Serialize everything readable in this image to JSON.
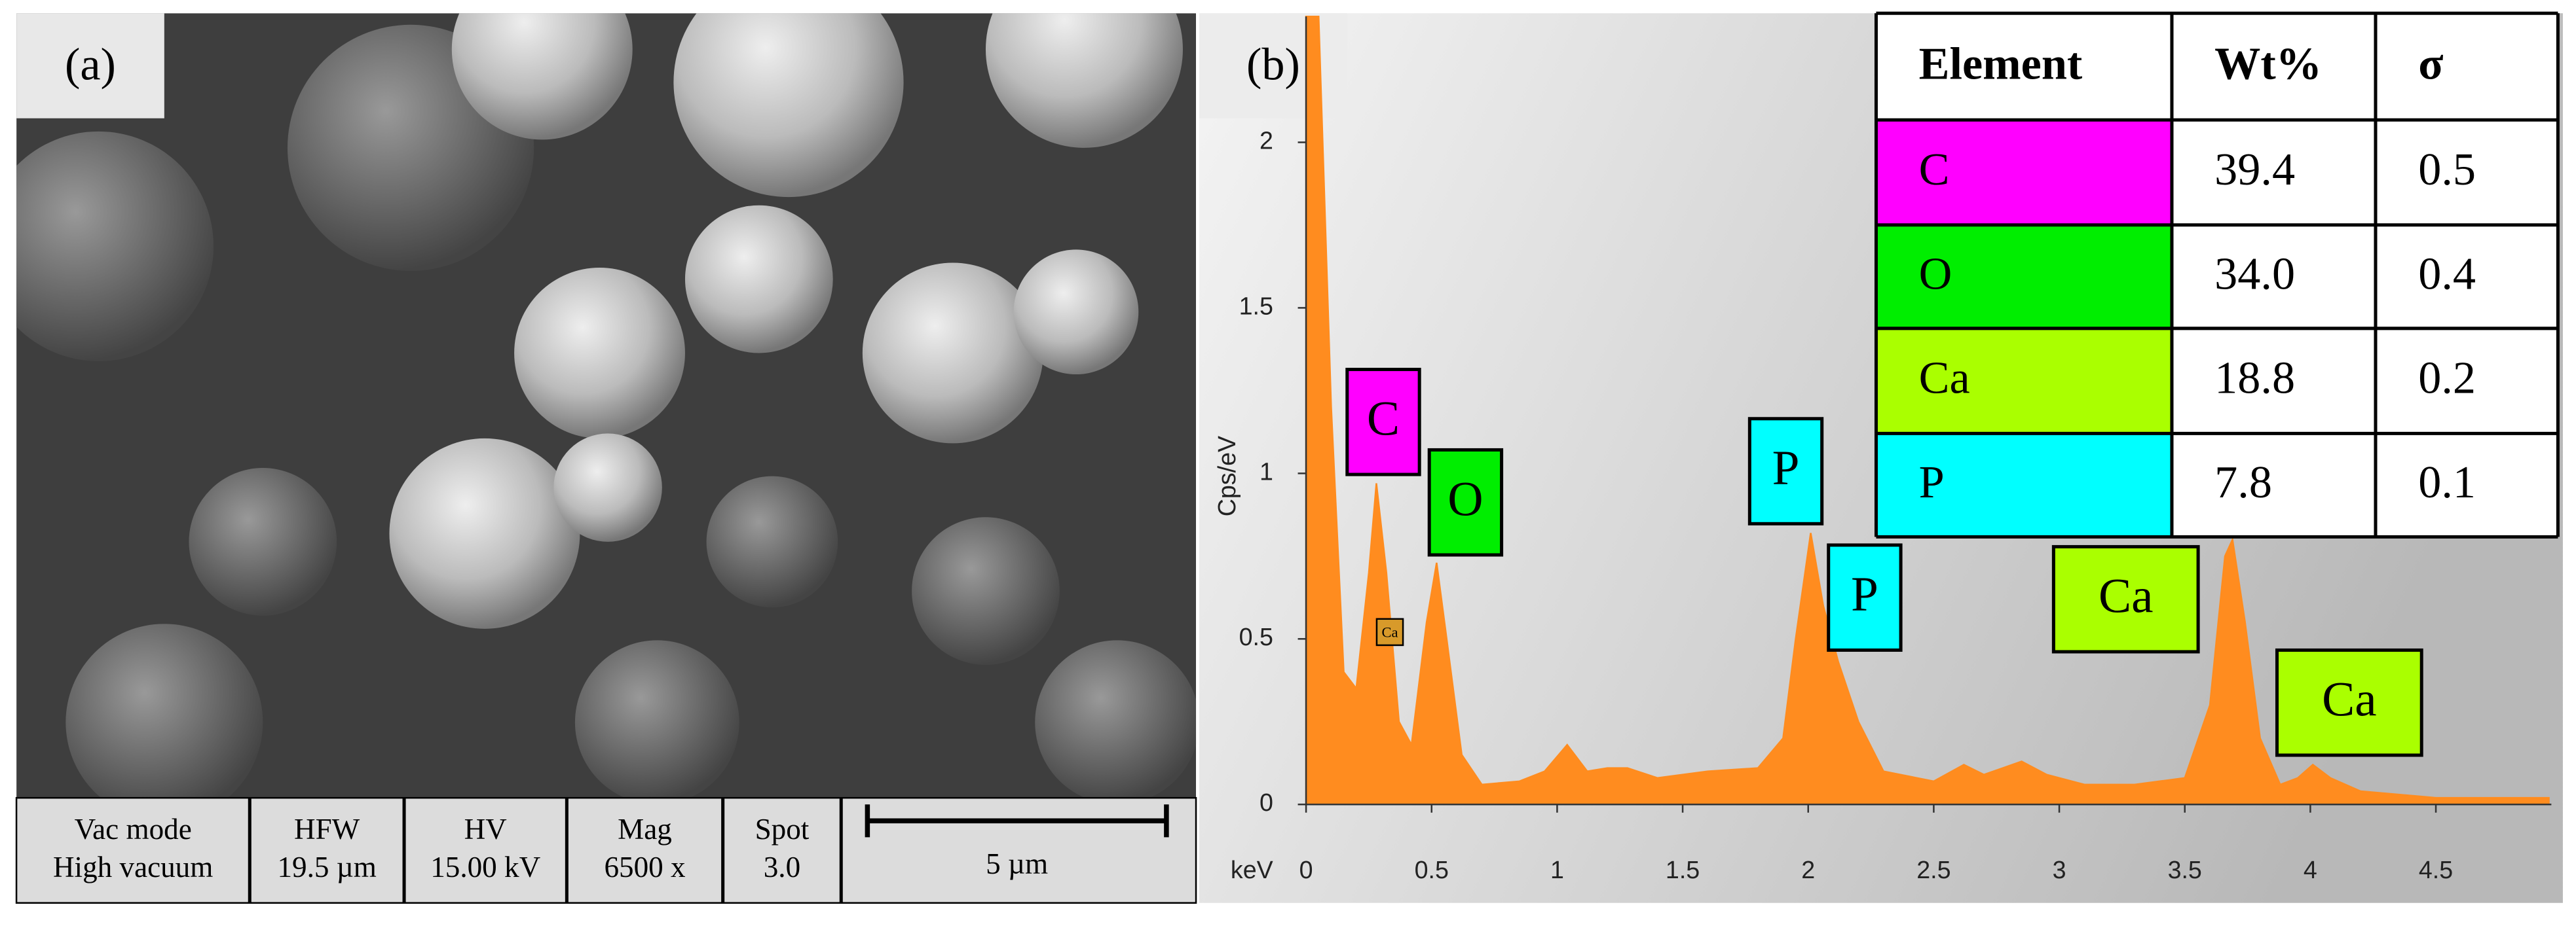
{
  "panel_a": {
    "label": "(a)",
    "info_bar": [
      [
        "Vac mode",
        "High vacuum"
      ],
      [
        "HFW",
        "19.5 µm"
      ],
      [
        "HV",
        "15.00 kV"
      ],
      [
        "Mag",
        "6500 x"
      ],
      [
        "Spot",
        "3.0"
      ]
    ],
    "scale_bar": "5 µm"
  },
  "table": {
    "header": [
      "Element",
      "Wt%",
      "σ"
    ],
    "rows": [
      [
        "C",
        "39.4",
        "0.5"
      ],
      [
        "O",
        "34.0",
        "0.4"
      ],
      [
        "Ca",
        "18.8",
        "0.2"
      ],
      [
        "P",
        "7.8",
        "0.1"
      ]
    ],
    "row_colors": [
      "#ff00ff",
      "#00ee00",
      "#aaff00",
      "#00ffff"
    ]
  },
  "chart_data": {
    "type": "area",
    "panel_label": "(b)",
    "x_label": "keV",
    "y_label": "Cps/eV",
    "color": "#ff8c1f",
    "x": [
      0.0,
      0.05,
      0.1,
      0.15,
      0.2,
      0.25,
      0.28,
      0.32,
      0.37,
      0.42,
      0.48,
      0.52,
      0.56,
      0.62,
      0.7,
      0.85,
      0.95,
      1.04,
      1.12,
      1.2,
      1.28,
      1.4,
      1.6,
      1.8,
      1.9,
      1.95,
      2.01,
      2.06,
      2.12,
      2.2,
      2.3,
      2.5,
      2.62,
      2.7,
      2.85,
      2.95,
      3.1,
      3.3,
      3.5,
      3.6,
      3.66,
      3.69,
      3.74,
      3.8,
      3.88,
      3.95,
      4.01,
      4.08,
      4.2,
      4.5,
      4.95
    ],
    "values": [
      2.38,
      2.38,
      1.2,
      0.4,
      0.35,
      0.7,
      0.97,
      0.7,
      0.25,
      0.18,
      0.55,
      0.73,
      0.5,
      0.15,
      0.06,
      0.07,
      0.1,
      0.18,
      0.1,
      0.11,
      0.11,
      0.08,
      0.1,
      0.11,
      0.2,
      0.5,
      0.82,
      0.6,
      0.43,
      0.25,
      0.1,
      0.07,
      0.12,
      0.09,
      0.13,
      0.09,
      0.06,
      0.06,
      0.08,
      0.3,
      0.75,
      0.8,
      0.55,
      0.2,
      0.06,
      0.08,
      0.12,
      0.08,
      0.04,
      0.02,
      0.02
    ],
    "xlim": [
      0,
      4.96
    ],
    "ylim": [
      0,
      2.38
    ],
    "xticks": [
      0,
      0.5,
      1,
      1.5,
      2,
      2.5,
      3,
      3.5,
      4,
      4.5
    ],
    "yticks": [
      0,
      0.5,
      1,
      1.5,
      2
    ],
    "annotations": [
      {
        "text": "C",
        "color": "#ff00ff"
      },
      {
        "text": "O",
        "color": "#00ee00"
      },
      {
        "text": "P",
        "color": "#00ffff"
      },
      {
        "text": "P",
        "color": "#00ffff"
      },
      {
        "text": "Ca",
        "color": "#aaff00"
      },
      {
        "text": "Ca",
        "color": "#aaff00"
      },
      {
        "text": "Ca",
        "color": "#d89a2a"
      }
    ]
  }
}
